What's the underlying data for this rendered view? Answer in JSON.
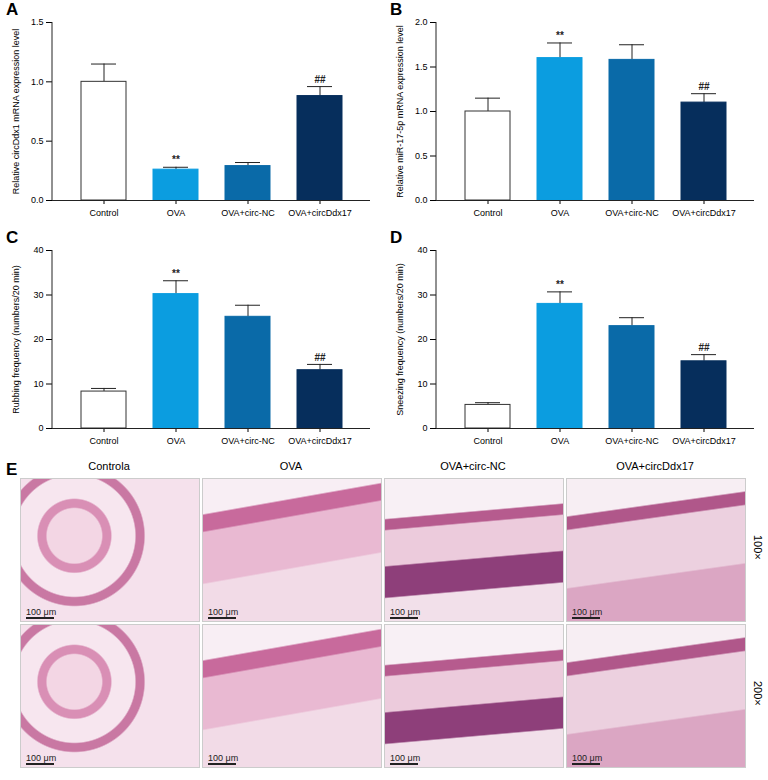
{
  "chart_data": [
    {
      "type": "bar",
      "label": "A",
      "categories": [
        "Control",
        "OVA",
        "OVA+circ-NC",
        "OVA+circDdx17"
      ],
      "values": [
        1.0,
        0.26,
        0.29,
        0.88
      ],
      "errors": [
        0.15,
        0.02,
        0.03,
        0.08
      ],
      "colors": [
        "#ffffff",
        "#0b9de0",
        "#0a6aa8",
        "#062e5c"
      ],
      "ylabel": "Relative circDdx1 mRNA expression level",
      "ylim": [
        0,
        1.5
      ],
      "yticks": [
        {
          "value": 0,
          "label": "0.0"
        },
        0.5,
        {
          "value": 1,
          "label": "1.0"
        },
        1.5
      ],
      "annotations": [
        {
          "category": "OVA",
          "text": "**"
        },
        {
          "category": "OVA+circDdx17",
          "text": "##"
        }
      ]
    },
    {
      "type": "bar",
      "label": "B",
      "categories": [
        "Control",
        "OVA",
        "OVA+circ-NC",
        "OVA+circDdx17"
      ],
      "values": [
        1.0,
        1.6,
        1.58,
        1.1
      ],
      "errors": [
        0.15,
        0.17,
        0.17,
        0.1
      ],
      "colors": [
        "#ffffff",
        "#0b9de0",
        "#0a6aa8",
        "#062e5c"
      ],
      "ylabel": "Relative miR-17-5p mRNA expression level",
      "ylim": [
        0,
        2
      ],
      "yticks": [
        {
          "value": 0,
          "label": "0.0"
        },
        0.5,
        {
          "value": 1,
          "label": "1.0"
        },
        1.5,
        {
          "value": 2,
          "label": "2.0"
        }
      ],
      "annotations": [
        {
          "category": "OVA",
          "text": "**"
        },
        {
          "category": "OVA+circDdx17",
          "text": "##"
        }
      ]
    },
    {
      "type": "bar",
      "label": "C",
      "categories": [
        "Control",
        "OVA",
        "OVA+circ-NC",
        "OVA+circDdx17"
      ],
      "values": [
        8.3,
        30.2,
        25.1,
        13.1
      ],
      "errors": [
        0.7,
        3,
        2.6,
        1.3
      ],
      "colors": [
        "#ffffff",
        "#0b9de0",
        "#0a6aa8",
        "#062e5c"
      ],
      "ylabel": "Rubbing frequency (numbers/20 min)",
      "ylim": [
        0,
        40
      ],
      "yticks": [
        0,
        10,
        20,
        30,
        40
      ],
      "annotations": [
        {
          "category": "OVA",
          "text": "**"
        },
        {
          "category": "OVA+circDdx17",
          "text": "##"
        }
      ]
    },
    {
      "type": "bar",
      "label": "D",
      "categories": [
        "Control",
        "OVA",
        "OVA+circ-NC",
        "OVA+circDdx17"
      ],
      "values": [
        5.3,
        28,
        23,
        15.1
      ],
      "errors": [
        0.5,
        2.7,
        1.9,
        1.5
      ],
      "colors": [
        "#ffffff",
        "#0b9de0",
        "#0a6aa8",
        "#062e5c"
      ],
      "ylabel": "Sneezing frequency (numbers/20 min)",
      "ylim": [
        0,
        40
      ],
      "yticks": [
        0,
        10,
        20,
        30,
        40
      ],
      "annotations": [
        {
          "category": "OVA",
          "text": "**"
        },
        {
          "category": "OVA+circDdx17",
          "text": "##"
        }
      ]
    },
    {
      "type": "image_grid",
      "label": "E",
      "columns": [
        "Controla",
        "OVA",
        "OVA+circ-NC",
        "OVA+circDdx17"
      ],
      "rows": [
        "100×",
        "200×"
      ],
      "scale_bar": "100 μm"
    }
  ]
}
